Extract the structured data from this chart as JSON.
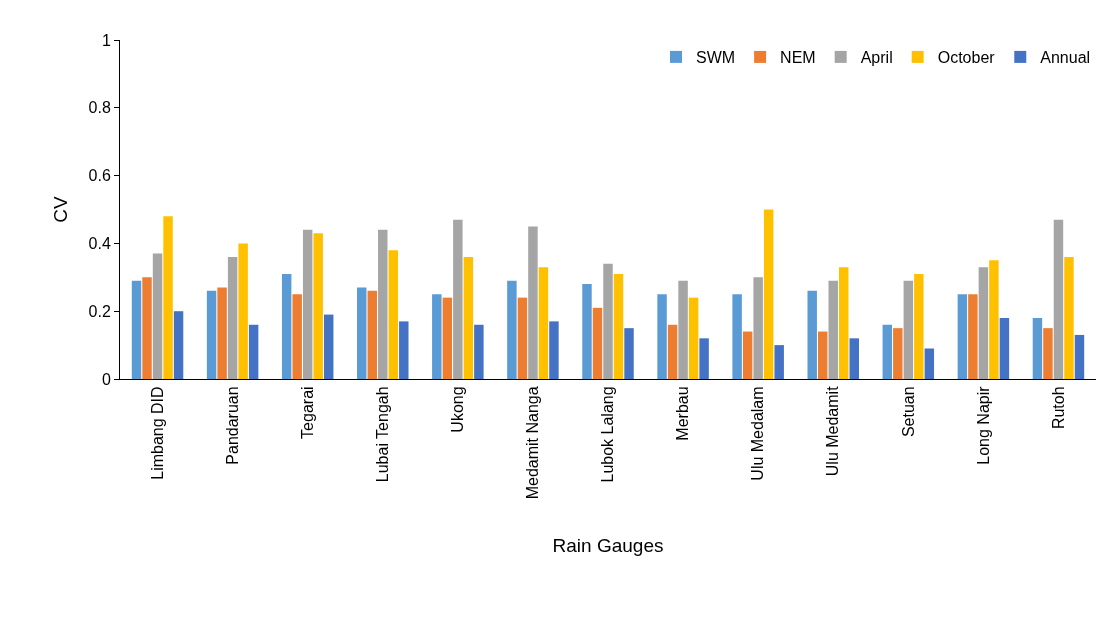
{
  "chart_data": {
    "type": "bar",
    "xlabel": "Rain Gauges",
    "ylabel": "CV",
    "categories": [
      "Limbang DID",
      "Pandaruan",
      "Tegarai",
      "Lubai Tengah",
      "Ukong",
      "Medamit Nanga",
      "Lubok Lalang",
      "Merbau",
      "Ulu Medalam",
      "Ulu Medamit",
      "Setuan",
      "Long Napir",
      "Rutoh"
    ],
    "series": [
      {
        "name": "SWM",
        "color": "#5b9bd5",
        "values": [
          0.29,
          0.26,
          0.31,
          0.27,
          0.25,
          0.29,
          0.28,
          0.25,
          0.25,
          0.26,
          0.16,
          0.25,
          0.18
        ]
      },
      {
        "name": "NEM",
        "color": "#ed7d31",
        "values": [
          0.3,
          0.27,
          0.25,
          0.26,
          0.24,
          0.24,
          0.21,
          0.16,
          0.14,
          0.14,
          0.15,
          0.25,
          0.15
        ]
      },
      {
        "name": "April",
        "color": "#a5a5a5",
        "values": [
          0.37,
          0.36,
          0.44,
          0.44,
          0.47,
          0.45,
          0.34,
          0.29,
          0.3,
          0.29,
          0.29,
          0.33,
          0.47
        ]
      },
      {
        "name": "October",
        "color": "#ffc000",
        "values": [
          0.48,
          0.4,
          0.43,
          0.38,
          0.36,
          0.33,
          0.31,
          0.24,
          0.5,
          0.33,
          0.31,
          0.35,
          0.36
        ]
      },
      {
        "name": "Annual",
        "color": "#4472c4",
        "values": [
          0.2,
          0.16,
          0.19,
          0.17,
          0.16,
          0.17,
          0.15,
          0.12,
          0.1,
          0.12,
          0.09,
          0.18,
          0.13
        ]
      }
    ],
    "ylim": [
      0,
      1
    ],
    "yticks": [
      0,
      0.2,
      0.4,
      0.6,
      0.8,
      1
    ],
    "grid": false,
    "legend": "top right"
  }
}
